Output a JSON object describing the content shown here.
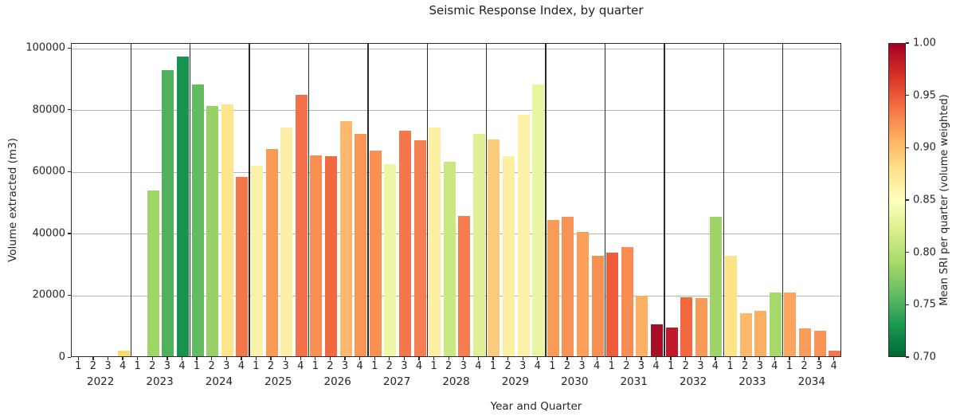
{
  "chart_data": {
    "type": "bar",
    "title": "Seismic Response Index, by quarter",
    "xlabel": "Year and Quarter",
    "ylabel": "Volume extracted (m3)",
    "ylim": [
      0,
      101500
    ],
    "yticks": [
      0,
      20000,
      40000,
      60000,
      80000,
      100000
    ],
    "grid": "horizontal-gray",
    "quarter_labels": [
      "1",
      "2",
      "3",
      "4"
    ],
    "colorbar": {
      "label": "Mean SRI per quarter (volume weighted)",
      "vmin": 0.7,
      "vmax": 1.0,
      "ticks": [
        "1.00",
        "0.95",
        "0.90",
        "0.85",
        "0.80",
        "0.75",
        "0.70"
      ],
      "colormap": "RdYlGn reversed (red=high SRI, green=low SRI)",
      "gradient_top_to_bottom": [
        "#a50026",
        "#d73027",
        "#f46d43",
        "#fdae61",
        "#fee08b",
        "#ffffbf",
        "#d9ef8b",
        "#a6d96a",
        "#66bd63",
        "#1a9850",
        "#006837"
      ]
    },
    "years": [
      {
        "year": "2022",
        "values": [
          0,
          0,
          0,
          1800
        ],
        "colors": [
          null,
          null,
          null,
          "#f8dc6a"
        ],
        "sri_approx": [
          null,
          null,
          null,
          0.88
        ]
      },
      {
        "year": "2023",
        "values": [
          0,
          53500,
          92500,
          97000
        ],
        "colors": [
          null,
          "#a0d568",
          "#4fb15c",
          "#17934d"
        ],
        "sri_approx": [
          null,
          0.79,
          0.76,
          0.72
        ]
      },
      {
        "year": "2024",
        "values": [
          88000,
          81000,
          81500,
          58000
        ],
        "colors": [
          "#63bb62",
          "#98d266",
          "#fbe68b",
          "#f4764b"
        ],
        "sri_approx": [
          0.76,
          0.79,
          0.87,
          0.93
        ]
      },
      {
        "year": "2025",
        "values": [
          61500,
          67000,
          74000,
          84500
        ],
        "colors": [
          "#fdf2ac",
          "#f99a56",
          "#fcf0a6",
          "#f4704a"
        ],
        "sri_approx": [
          0.86,
          0.92,
          0.86,
          0.94
        ]
      },
      {
        "year": "2026",
        "values": [
          65000,
          64800,
          76000,
          72000
        ],
        "colors": [
          "#f98f52",
          "#f2693f",
          "#fcb96c",
          "#fa9556"
        ],
        "sri_approx": [
          0.92,
          0.94,
          0.9,
          0.92
        ]
      },
      {
        "year": "2027",
        "values": [
          66500,
          62000,
          73000,
          69800
        ],
        "colors": [
          "#f99152",
          "#ecf7a8",
          "#f5764b",
          "#f67e4f"
        ],
        "sri_approx": [
          0.92,
          0.84,
          0.93,
          0.93
        ]
      },
      {
        "year": "2028",
        "values": [
          74000,
          63000,
          45300,
          72000
        ],
        "colors": [
          "#fdf0a4",
          "#c9e881",
          "#f87d4e",
          "#dff094"
        ],
        "sri_approx": [
          0.86,
          0.81,
          0.93,
          0.83
        ]
      },
      {
        "year": "2029",
        "values": [
          70000,
          64800,
          78000,
          88000
        ],
        "colors": [
          "#fbca7a",
          "#fdf0a3",
          "#fdf1a7",
          "#e9f5a1"
        ],
        "sri_approx": [
          0.89,
          0.86,
          0.86,
          0.84
        ]
      },
      {
        "year": "2030",
        "values": [
          44000,
          45000,
          40300,
          32400
        ],
        "colors": [
          "#fa9b58",
          "#f99254",
          "#fb9f5b",
          "#f98f52"
        ],
        "sri_approx": [
          0.91,
          0.92,
          0.91,
          0.92
        ]
      },
      {
        "year": "2031",
        "values": [
          33500,
          35200,
          19500,
          10400
        ],
        "colors": [
          "#ee5c3a",
          "#f88c51",
          "#fdb063",
          "#a80d26"
        ],
        "sri_approx": [
          0.95,
          0.92,
          0.91,
          1.0
        ]
      },
      {
        "year": "2032",
        "values": [
          9300,
          19000,
          18700,
          45000
        ],
        "colors": [
          "#c0192c",
          "#f2673e",
          "#fa9a57",
          "#9ed468"
        ],
        "sri_approx": [
          0.97,
          0.94,
          0.92,
          0.79
        ]
      },
      {
        "year": "2033",
        "values": [
          32500,
          14000,
          14800,
          20600
        ],
        "colors": [
          "#fce387",
          "#fdb869",
          "#fcae62",
          "#a6d96a"
        ],
        "sri_approx": [
          0.88,
          0.9,
          0.91,
          0.79
        ]
      },
      {
        "year": "2034",
        "values": [
          20600,
          9100,
          8300,
          1800
        ],
        "colors": [
          "#fba65e",
          "#fa9d5a",
          "#f99455",
          "#f5764b"
        ],
        "sri_approx": [
          0.91,
          0.92,
          0.92,
          0.93
        ]
      }
    ]
  }
}
